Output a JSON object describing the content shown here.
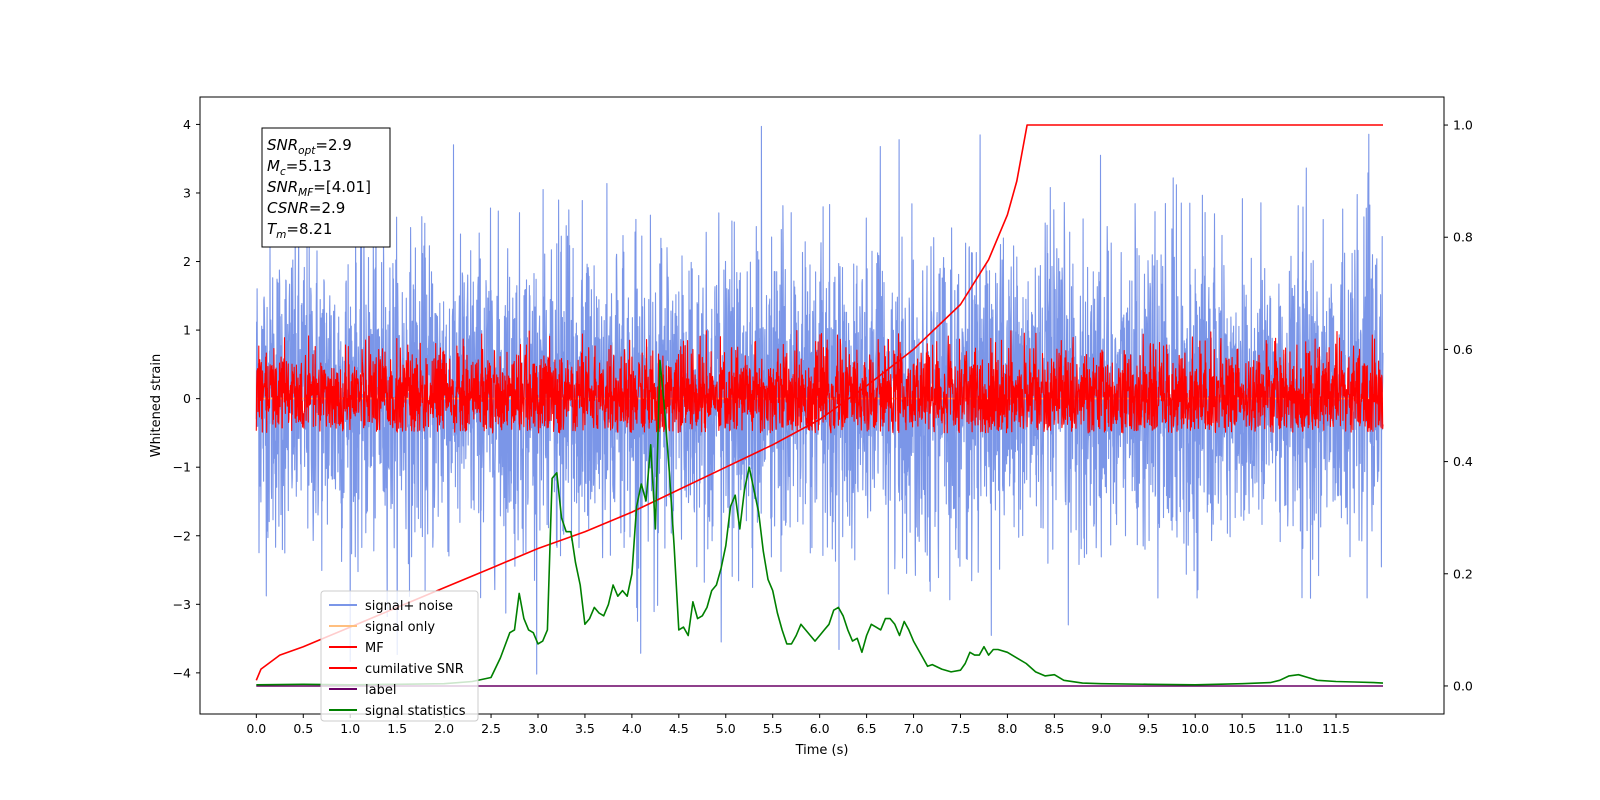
{
  "chart_data": {
    "type": "line",
    "xlabel": "Time (s)",
    "ylabel": "Whitened strain",
    "xlim": [
      -0.6,
      12.65
    ],
    "ylim": [
      -4.6,
      4.4
    ],
    "y2lim": [
      -0.05,
      1.05
    ],
    "x_ticks": [
      "0.0",
      "0.5",
      "1.0",
      "1.5",
      "2.0",
      "2.5",
      "3.0",
      "3.5",
      "4.0",
      "4.5",
      "5.0",
      "5.5",
      "6.0",
      "6.5",
      "7.0",
      "7.5",
      "8.0",
      "8.5",
      "9.0",
      "9.5",
      "10.0",
      "10.5",
      "11.0",
      "11.5"
    ],
    "y_ticks": [
      "4",
      "3",
      "2",
      "1",
      "0",
      "−1",
      "−2",
      "−3",
      "−4"
    ],
    "y2_ticks": [
      "1.0",
      "0.8",
      "0.6",
      "0.4",
      "0.2",
      "0.0"
    ],
    "grid": false,
    "legend_position": "lower-left",
    "annotation": [
      {
        "base": "SNR",
        "sub": "opt",
        "rest": "=2.9"
      },
      {
        "base": "M",
        "sub": "c",
        "rest": "=5.13"
      },
      {
        "base": "SNR",
        "sub": "MF",
        "rest": "=[4.01]"
      },
      {
        "base": "CSNR",
        "sub": "",
        "rest": "=2.9"
      },
      {
        "base": "T",
        "sub": "m",
        "rest": "=8.21"
      }
    ],
    "series": [
      {
        "name": "signal+ noise",
        "axis": "left",
        "color": "#7b96e8",
        "style": "noise",
        "x_range": [
          0,
          12.0
        ],
        "typical_range": [
          -1.4,
          1.5
        ],
        "peak_range": [
          -4.1,
          4.0
        ]
      },
      {
        "name": "signal only",
        "axis": "left",
        "color": "#ffbf7f",
        "style": "flat",
        "x": [
          0,
          12.0
        ],
        "y": [
          0,
          0
        ]
      },
      {
        "name": "MF",
        "axis": "left",
        "color": "#ff0000",
        "style": "noise",
        "x_range": [
          0,
          12.0
        ],
        "typical_range": [
          -0.4,
          0.5
        ],
        "peak_range": [
          -0.5,
          1.0
        ]
      },
      {
        "name": "cumilative SNR",
        "axis": "right",
        "color": "#ff0000",
        "style": "line",
        "x": [
          0,
          0.05,
          0.25,
          0.5,
          1.0,
          1.5,
          2.0,
          2.5,
          3.0,
          3.5,
          4.0,
          4.5,
          5.0,
          5.5,
          6.0,
          6.5,
          7.0,
          7.5,
          7.8,
          8.0,
          8.1,
          8.21,
          12.0
        ],
        "y": [
          0.01,
          0.03,
          0.055,
          0.07,
          0.105,
          0.14,
          0.175,
          0.21,
          0.245,
          0.275,
          0.31,
          0.35,
          0.39,
          0.43,
          0.475,
          0.535,
          0.6,
          0.68,
          0.76,
          0.84,
          0.9,
          1.0,
          1.0
        ]
      },
      {
        "name": "label",
        "axis": "right",
        "color": "#6a0066",
        "style": "line",
        "x": [
          0,
          12.0
        ],
        "y": [
          0.0,
          0.0
        ]
      },
      {
        "name": "signal statistics",
        "axis": "right",
        "color": "#008000",
        "style": "line",
        "x": [
          0,
          0.5,
          1.0,
          1.5,
          2.0,
          2.3,
          2.5,
          2.6,
          2.7,
          2.75,
          2.8,
          2.85,
          2.9,
          2.95,
          3.0,
          3.05,
          3.1,
          3.15,
          3.2,
          3.25,
          3.3,
          3.35,
          3.4,
          3.45,
          3.5,
          3.55,
          3.6,
          3.65,
          3.7,
          3.75,
          3.8,
          3.85,
          3.9,
          3.95,
          4.0,
          4.05,
          4.1,
          4.15,
          4.2,
          4.25,
          4.3,
          4.35,
          4.4,
          4.45,
          4.5,
          4.55,
          4.6,
          4.65,
          4.7,
          4.75,
          4.8,
          4.85,
          4.9,
          4.95,
          5.0,
          5.05,
          5.1,
          5.15,
          5.2,
          5.25,
          5.3,
          5.35,
          5.4,
          5.45,
          5.5,
          5.55,
          5.6,
          5.65,
          5.7,
          5.75,
          5.8,
          5.85,
          5.9,
          5.95,
          6.0,
          6.05,
          6.1,
          6.15,
          6.2,
          6.25,
          6.3,
          6.35,
          6.4,
          6.45,
          6.5,
          6.55,
          6.6,
          6.65,
          6.7,
          6.75,
          6.8,
          6.85,
          6.9,
          6.95,
          7.0,
          7.05,
          7.1,
          7.15,
          7.2,
          7.3,
          7.4,
          7.5,
          7.55,
          7.6,
          7.65,
          7.7,
          7.75,
          7.8,
          7.85,
          7.9,
          8.0,
          8.1,
          8.2,
          8.3,
          8.4,
          8.5,
          8.6,
          8.8,
          9.0,
          9.5,
          10.0,
          10.5,
          10.8,
          10.9,
          11.0,
          11.1,
          11.2,
          11.3,
          11.5,
          11.7,
          11.9,
          12.0
        ],
        "y": [
          0.002,
          0.003,
          0.002,
          0.003,
          0.004,
          0.008,
          0.015,
          0.05,
          0.095,
          0.1,
          0.165,
          0.12,
          0.1,
          0.095,
          0.075,
          0.08,
          0.1,
          0.37,
          0.38,
          0.3,
          0.275,
          0.275,
          0.22,
          0.18,
          0.11,
          0.12,
          0.14,
          0.13,
          0.125,
          0.145,
          0.18,
          0.16,
          0.17,
          0.16,
          0.2,
          0.32,
          0.36,
          0.33,
          0.43,
          0.28,
          0.58,
          0.49,
          0.38,
          0.25,
          0.1,
          0.105,
          0.09,
          0.15,
          0.12,
          0.125,
          0.14,
          0.17,
          0.18,
          0.21,
          0.25,
          0.32,
          0.34,
          0.28,
          0.35,
          0.39,
          0.35,
          0.31,
          0.24,
          0.19,
          0.17,
          0.13,
          0.1,
          0.075,
          0.075,
          0.09,
          0.11,
          0.1,
          0.09,
          0.08,
          0.09,
          0.1,
          0.11,
          0.135,
          0.14,
          0.125,
          0.1,
          0.08,
          0.085,
          0.06,
          0.09,
          0.11,
          0.105,
          0.1,
          0.12,
          0.12,
          0.11,
          0.09,
          0.115,
          0.1,
          0.08,
          0.065,
          0.05,
          0.035,
          0.038,
          0.03,
          0.025,
          0.028,
          0.04,
          0.06,
          0.055,
          0.055,
          0.07,
          0.055,
          0.065,
          0.065,
          0.06,
          0.05,
          0.04,
          0.025,
          0.018,
          0.02,
          0.01,
          0.005,
          0.004,
          0.003,
          0.002,
          0.004,
          0.006,
          0.01,
          0.018,
          0.02,
          0.015,
          0.01,
          0.008,
          0.007,
          0.006,
          0.005
        ]
      }
    ]
  }
}
